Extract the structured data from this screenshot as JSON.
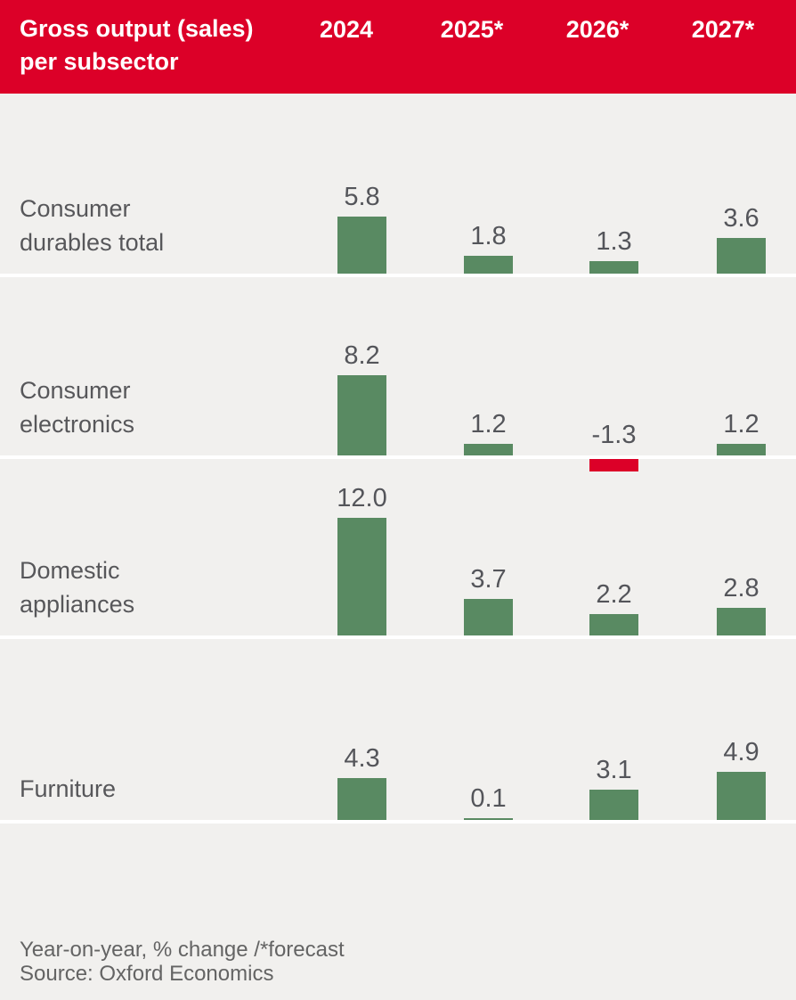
{
  "header": {
    "title_line1": "Gross output (sales)",
    "title_line2": "per subsector"
  },
  "footer": {
    "footnote": "Year-on-year, % change /*forecast",
    "source": "Source: Oxford Economics"
  },
  "chart_data": {
    "type": "bar",
    "title": "Gross output (sales) per subsector",
    "unit": "Year-on-year, % change",
    "forecast_note": "*forecast",
    "source": "Source: Oxford Economics",
    "columns": [
      "2024",
      "2025*",
      "2026*",
      "2027*"
    ],
    "rows": [
      {
        "label": "Consumer durables total",
        "label_lines": [
          "Consumer",
          "durables total"
        ],
        "values": [
          5.8,
          1.8,
          1.3,
          3.6
        ]
      },
      {
        "label": "Consumer electronics",
        "label_lines": [
          "Consumer",
          "electronics"
        ],
        "values": [
          8.2,
          1.2,
          -1.3,
          1.2
        ]
      },
      {
        "label": "Domestic appliances",
        "label_lines": [
          "Domestic",
          "appliances"
        ],
        "values": [
          12.0,
          3.7,
          2.2,
          2.8
        ]
      },
      {
        "label": "Furniture",
        "label_lines": [
          "Furniture"
        ],
        "values": [
          4.3,
          0.1,
          3.1,
          4.9
        ]
      }
    ],
    "colors": {
      "positive_bar": "#598a62",
      "negative_bar": "#dc0028",
      "header_bg": "#dc0028",
      "header_text": "#ffffff",
      "background": "#f1f0ee",
      "row_label_text": "#57575a",
      "value_text": "#54555a",
      "footer_text": "#646464",
      "separator": "#ffffff"
    }
  }
}
